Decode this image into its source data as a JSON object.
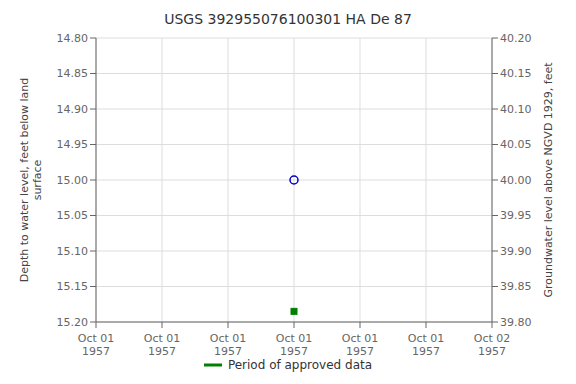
{
  "chart_data": {
    "type": "scatter",
    "title": "USGS 392955076100301 HA De  87",
    "categories": [
      "Oct 01\n1957",
      "Oct 01\n1957",
      "Oct 01\n1957",
      "Oct 01\n1957",
      "Oct 01\n1957",
      "Oct 01\n1957",
      "Oct 02\n1957"
    ],
    "ylabel": "Depth to water level, feet below land\nsurface",
    "y2label": "Groundwater level above NGVD 1929, feet",
    "ylim": [
      15.2,
      14.8
    ],
    "yticks": [
      {
        "value": 14.8,
        "label": "14.80"
      },
      14.85,
      {
        "value": 14.9,
        "label": "14.90"
      },
      14.95,
      {
        "value": 15.0,
        "label": "15.00"
      },
      15.05,
      {
        "value": 15.1,
        "label": "15.10"
      },
      15.15,
      {
        "value": 15.2,
        "label": "15.20"
      }
    ],
    "y2lim": [
      39.8,
      40.2
    ],
    "y2ticks": [
      {
        "value": 39.8,
        "label": "39.80"
      },
      39.85,
      {
        "value": 39.9,
        "label": "39.90"
      },
      39.95,
      {
        "value": 40.0,
        "label": "40.00"
      },
      40.05,
      {
        "value": 40.1,
        "label": "40.10"
      },
      40.15,
      {
        "value": 40.2,
        "label": "40.20"
      }
    ],
    "series": [
      {
        "color": "#0000cc",
        "marker": "circle_open",
        "values": [
          null,
          null,
          null,
          15.0,
          null,
          null,
          null
        ]
      },
      {
        "name": "Period of approved data",
        "color": "#008000",
        "marker": "square",
        "values": [
          null,
          null,
          null,
          15.185,
          null,
          null,
          null
        ]
      }
    ],
    "grid": true,
    "legend": "bottom"
  }
}
